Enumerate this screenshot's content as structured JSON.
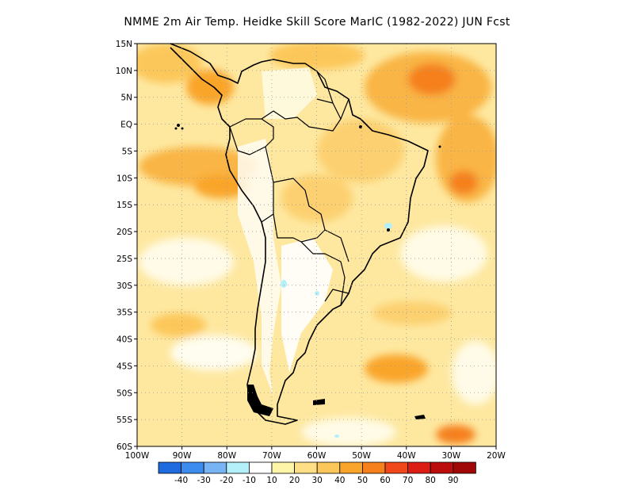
{
  "title": "NMME  2m Air Temp. Heidke Skill Score MarIC (1982-2022) JUN Fcst",
  "map": {
    "lon_range": [
      -100,
      -20
    ],
    "lat_range": [
      -60,
      15
    ],
    "lat_labels": [
      "15N",
      "10N",
      "5N",
      "EQ",
      "5S",
      "10S",
      "15S",
      "20S",
      "25S",
      "30S",
      "35S",
      "40S",
      "45S",
      "50S",
      "55S",
      "60S"
    ],
    "lon_labels": [
      "100W",
      "90W",
      "80W",
      "70W",
      "60W",
      "50W",
      "40W",
      "30W",
      "20W"
    ],
    "grid": "dotted"
  },
  "colorbar": {
    "labels": [
      "-40",
      "-30",
      "-20",
      "-10",
      "10",
      "20",
      "30",
      "40",
      "50",
      "60",
      "70",
      "80",
      "90"
    ],
    "colors": [
      "#1e6be0",
      "#3c8cf0",
      "#78b4f4",
      "#b4f0fa",
      "#ffffff",
      "#fff5a8",
      "#fedf85",
      "#fcc75a",
      "#f9a52b",
      "#f5801c",
      "#f0481a",
      "#dc1d14",
      "#bc0d0d",
      "#a00808"
    ]
  }
}
